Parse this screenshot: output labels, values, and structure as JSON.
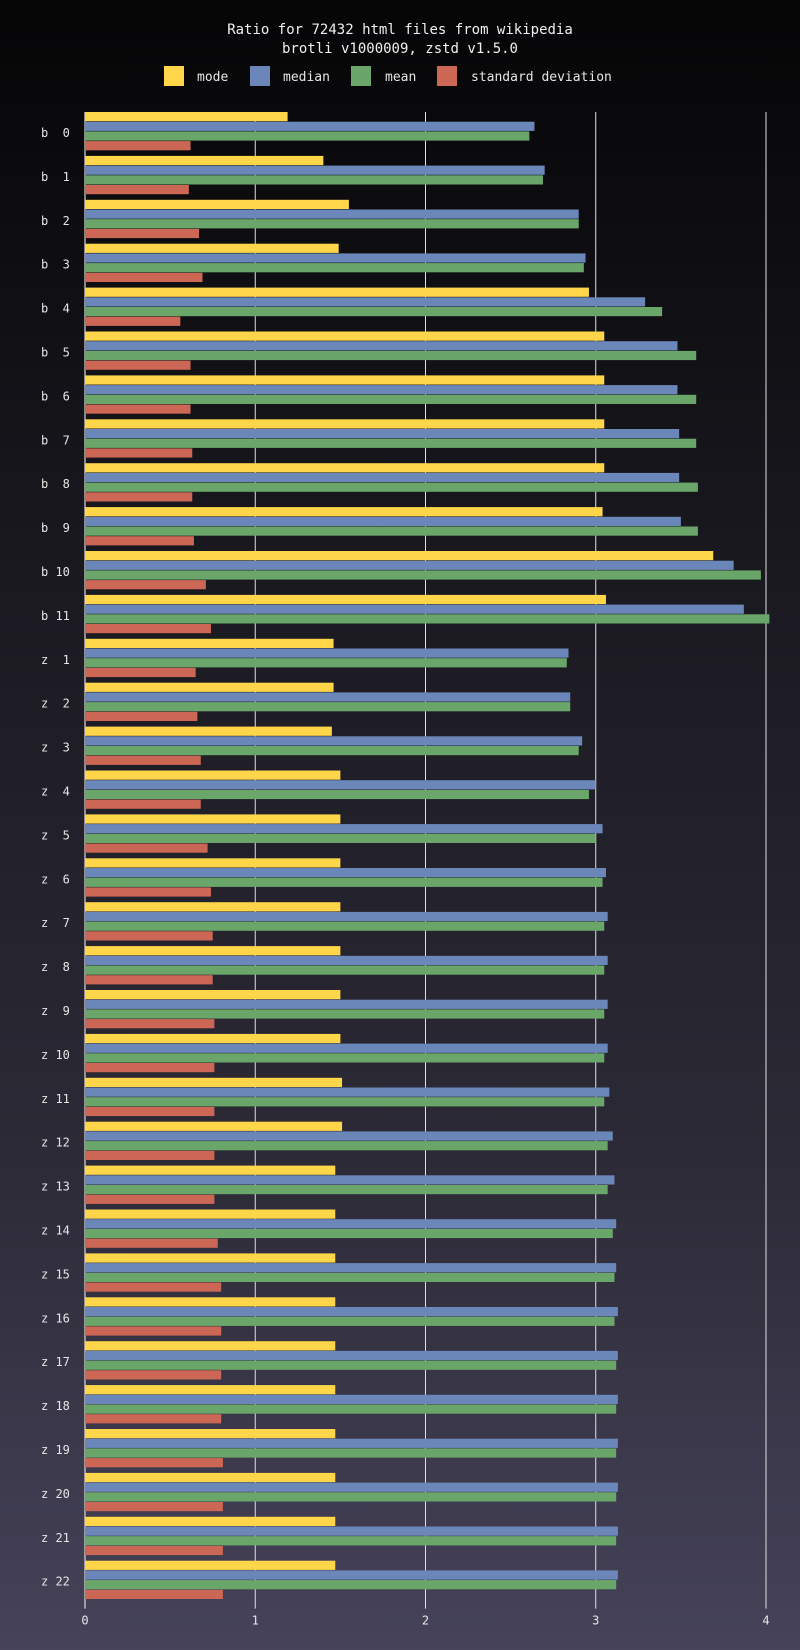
{
  "chart_data": {
    "type": "bar",
    "orientation": "horizontal",
    "title": "Ratio for 72432 html files from wikipedia",
    "subtitle": "brotli v1000009, zstd v1.5.0",
    "xlabel": "",
    "ylabel": "",
    "xlim": [
      0,
      4
    ],
    "xticks": [
      0,
      1,
      2,
      3,
      4
    ],
    "grid": "vertical",
    "legend_position": "top-center",
    "categories": [
      "b  0",
      "b  1",
      "b  2",
      "b  3",
      "b  4",
      "b  5",
      "b  6",
      "b  7",
      "b  8",
      "b  9",
      "b 10",
      "b 11",
      "z  1",
      "z  2",
      "z  3",
      "z  4",
      "z  5",
      "z  6",
      "z  7",
      "z  8",
      "z  9",
      "z 10",
      "z 11",
      "z 12",
      "z 13",
      "z 14",
      "z 15",
      "z 16",
      "z 17",
      "z 18",
      "z 19",
      "z 20",
      "z 21",
      "z 22"
    ],
    "series": [
      {
        "name": "mode",
        "color": "#ffd54a",
        "values": [
          1.19,
          1.4,
          1.55,
          1.49,
          2.96,
          3.05,
          3.05,
          3.05,
          3.05,
          3.04,
          3.69,
          3.06,
          1.46,
          1.46,
          1.45,
          1.5,
          1.5,
          1.5,
          1.5,
          1.5,
          1.5,
          1.5,
          1.51,
          1.51,
          1.47,
          1.47,
          1.47,
          1.47,
          1.47,
          1.47,
          1.47,
          1.47,
          1.47,
          1.47
        ]
      },
      {
        "name": "median",
        "color": "#6b86b8",
        "values": [
          2.64,
          2.7,
          2.9,
          2.94,
          3.29,
          3.48,
          3.48,
          3.49,
          3.49,
          3.5,
          3.81,
          3.87,
          2.84,
          2.85,
          2.92,
          3.0,
          3.04,
          3.06,
          3.07,
          3.07,
          3.07,
          3.07,
          3.08,
          3.1,
          3.11,
          3.12,
          3.12,
          3.13,
          3.13,
          3.13,
          3.13,
          3.13,
          3.13,
          3.13
        ]
      },
      {
        "name": "mean",
        "color": "#6aa66a",
        "values": [
          2.61,
          2.69,
          2.9,
          2.93,
          3.39,
          3.59,
          3.59,
          3.59,
          3.6,
          3.6,
          3.97,
          4.02,
          2.83,
          2.85,
          2.9,
          2.96,
          3.0,
          3.04,
          3.05,
          3.05,
          3.05,
          3.05,
          3.05,
          3.07,
          3.07,
          3.1,
          3.11,
          3.11,
          3.12,
          3.12,
          3.12,
          3.12,
          3.12,
          3.12
        ]
      },
      {
        "name": "standard deviation",
        "color": "#cc6655",
        "values": [
          0.62,
          0.61,
          0.67,
          0.69,
          0.56,
          0.62,
          0.62,
          0.63,
          0.63,
          0.64,
          0.71,
          0.74,
          0.65,
          0.66,
          0.68,
          0.68,
          0.72,
          0.74,
          0.75,
          0.75,
          0.76,
          0.76,
          0.76,
          0.76,
          0.76,
          0.78,
          0.8,
          0.8,
          0.8,
          0.8,
          0.81,
          0.81,
          0.81,
          0.81
        ]
      }
    ]
  }
}
